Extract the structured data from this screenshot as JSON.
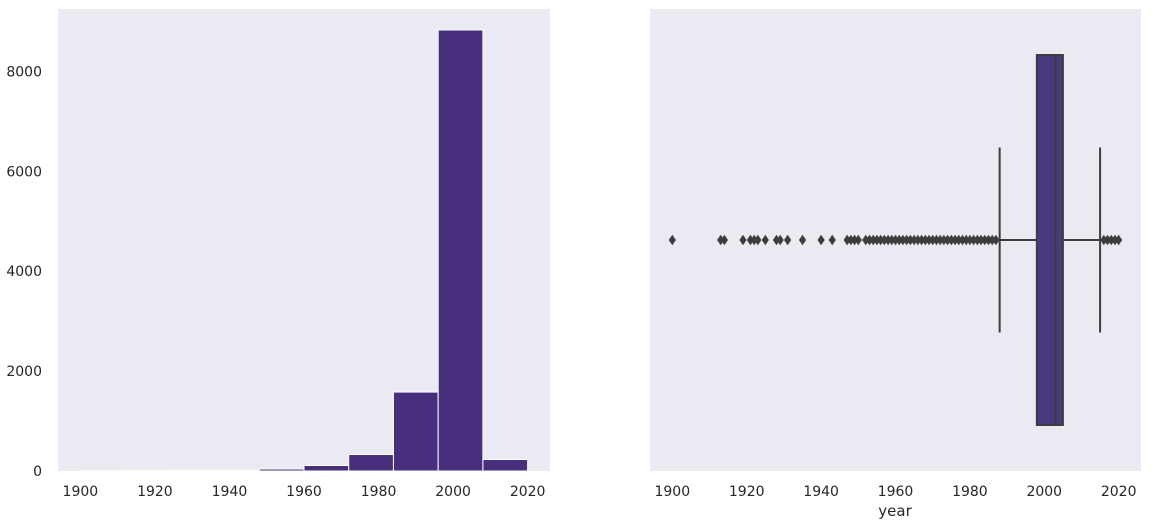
{
  "chart_data": [
    {
      "type": "histogram",
      "title": "",
      "xlabel": "",
      "ylabel": "",
      "xlim": [
        1894,
        2026
      ],
      "ylim": [
        0,
        9250
      ],
      "xticks": [
        1900,
        1920,
        1940,
        1960,
        1980,
        2000,
        2020
      ],
      "yticks": [
        0,
        2000,
        4000,
        6000,
        8000
      ],
      "grid": false,
      "color": "#482f7e",
      "background": "#eaeaf2",
      "bins": [
        {
          "start": 1900,
          "end": 1912,
          "count": 2
        },
        {
          "start": 1912,
          "end": 1924,
          "count": 8
        },
        {
          "start": 1924,
          "end": 1936,
          "count": 10
        },
        {
          "start": 1936,
          "end": 1948,
          "count": 15
        },
        {
          "start": 1948,
          "end": 1960,
          "count": 40
        },
        {
          "start": 1960,
          "end": 1972,
          "count": 110
        },
        {
          "start": 1972,
          "end": 1984,
          "count": 330
        },
        {
          "start": 1984,
          "end": 1996,
          "count": 1580
        },
        {
          "start": 1996,
          "end": 2008,
          "count": 8830
        },
        {
          "start": 2008,
          "end": 2020,
          "count": 230
        }
      ]
    },
    {
      "type": "boxplot",
      "title": "",
      "xlabel": "year",
      "ylabel": "",
      "xlim": [
        1894,
        2026
      ],
      "xticks": [
        1900,
        1920,
        1940,
        1960,
        1980,
        2000,
        2020
      ],
      "grid": false,
      "color": "#483a7c",
      "background": "#eaeaf2",
      "q1": 1998,
      "median": 2003,
      "q3": 2005,
      "whisker_low": 1988,
      "whisker_high": 2015,
      "outliers": [
        1900,
        1913,
        1914,
        1919,
        1921,
        1922,
        1923,
        1925,
        1928,
        1929,
        1931,
        1935,
        1940,
        1943,
        1947,
        1948,
        1949,
        1950,
        1952,
        1953,
        1954,
        1955,
        1956,
        1957,
        1958,
        1959,
        1960,
        1961,
        1962,
        1963,
        1964,
        1965,
        1966,
        1967,
        1968,
        1969,
        1970,
        1971,
        1972,
        1973,
        1974,
        1975,
        1976,
        1977,
        1978,
        1979,
        1980,
        1981,
        1982,
        1983,
        1984,
        1985,
        1986,
        1987,
        2016,
        2017,
        2018,
        2019,
        2020
      ]
    }
  ]
}
